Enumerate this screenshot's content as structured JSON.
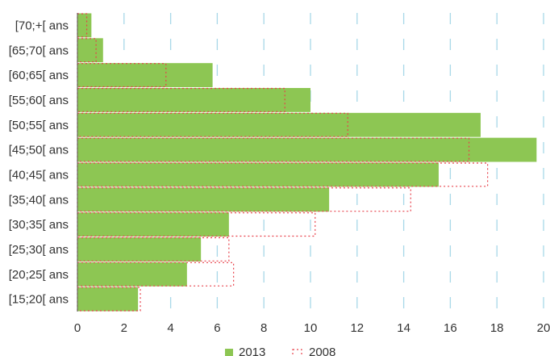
{
  "chart_data": {
    "type": "bar",
    "orientation": "horizontal",
    "categories": [
      "[15;20[ ans",
      "[20;25[ ans",
      "[25;30[ ans",
      "[30;35[ ans",
      "[35;40[ ans",
      "[40;45[ ans",
      "[45;50[ ans",
      "[50;55[ ans",
      "[55;60[ ans",
      "[60;65[ ans",
      "[65;70[ ans",
      "[70;+[ ans"
    ],
    "series": [
      {
        "name": "2013",
        "style": "filled",
        "color": "#8dc653",
        "values": [
          2.6,
          4.7,
          5.3,
          6.5,
          10.8,
          15.5,
          19.7,
          17.3,
          10.0,
          5.8,
          1.1,
          0.6
        ]
      },
      {
        "name": "2008",
        "style": "dotted-outline",
        "color": "#e8404a",
        "values": [
          2.7,
          6.7,
          6.5,
          10.2,
          14.3,
          17.6,
          16.8,
          11.6,
          8.9,
          3.8,
          0.8,
          0.4
        ]
      }
    ],
    "xlim": [
      0,
      20
    ],
    "xticks": [
      0,
      2,
      4,
      6,
      8,
      10,
      12,
      14,
      16,
      18,
      20
    ],
    "title": "",
    "xlabel": "",
    "ylabel": "",
    "grid": "vertical dashed",
    "legend": "bottom-center",
    "colors": {
      "grid": "#a8d8e8",
      "axis": "#555555",
      "text": "#333333"
    }
  }
}
